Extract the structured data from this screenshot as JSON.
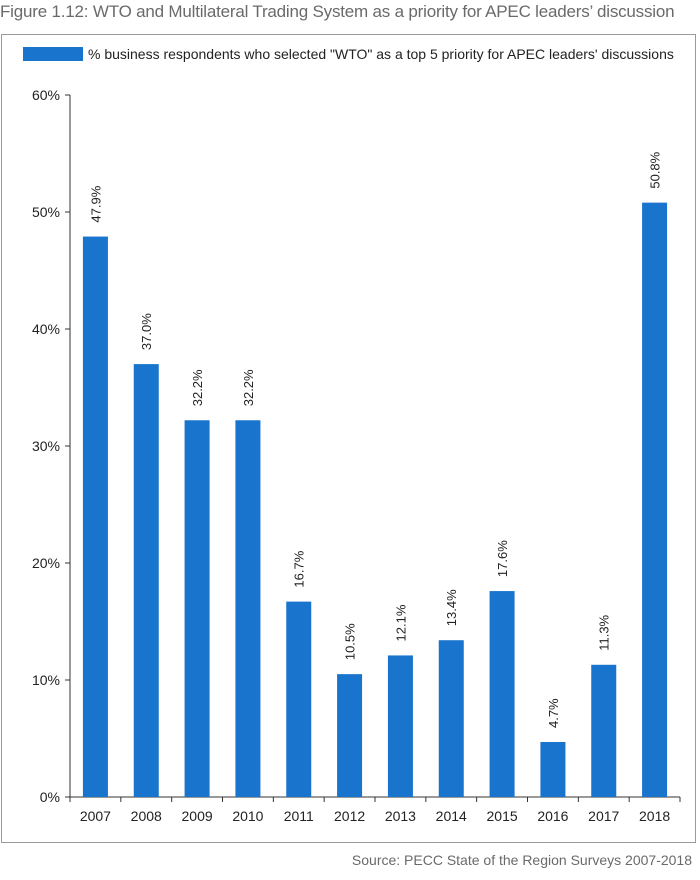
{
  "figure": {
    "title": "Figure 1.12: WTO and Multilateral Trading System as a priority for APEC leaders’ discussion",
    "source": "Source: PECC State of the Region Surveys 2007-2018"
  },
  "chart_data": {
    "type": "bar",
    "categories": [
      "2007",
      "2008",
      "2009",
      "2010",
      "2011",
      "2012",
      "2013",
      "2014",
      "2015",
      "2016",
      "2017",
      "2018"
    ],
    "series": [
      {
        "name": "% business respondents who selected \"WTO\" as a top 5 priority for APEC leaders' discussions",
        "values": [
          47.9,
          37.0,
          32.2,
          32.2,
          16.7,
          10.5,
          12.1,
          13.4,
          17.6,
          4.7,
          11.3,
          50.8
        ],
        "labels": [
          "47.9%",
          "37.0%",
          "32.2%",
          "32.2%",
          "16.7%",
          "10.5%",
          "12.1%",
          "13.4%",
          "17.6%",
          "4.7%",
          "11.3%",
          "50.8%"
        ],
        "color": "#1874cd"
      }
    ],
    "ylim": [
      0,
      60
    ],
    "yticks": [
      0,
      10,
      20,
      30,
      40,
      50,
      60
    ],
    "ytick_labels": [
      "0%",
      "10%",
      "20%",
      "30%",
      "40%",
      "50%",
      "60%"
    ],
    "xlabel": "",
    "ylabel": "",
    "grid": false,
    "legend_position": "top"
  }
}
